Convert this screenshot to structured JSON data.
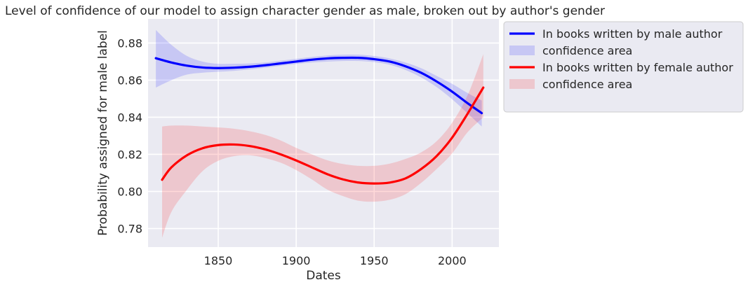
{
  "chart_data": {
    "type": "line",
    "title": "Level of confidence of our model to assign character gender as male, broken out by author's gender",
    "xlabel": "Dates",
    "ylabel": "Probability assigned for male label",
    "xlim": [
      1805,
      2030
    ],
    "ylim": [
      0.77,
      0.893
    ],
    "xticks": [
      1850,
      1900,
      1950,
      2000
    ],
    "yticks": [
      0.78,
      0.8,
      0.82,
      0.84,
      0.86,
      0.88
    ],
    "grid": true,
    "legend_position": "outside-top-right",
    "series": [
      {
        "name": "In books written by male author",
        "color": "#0000ff",
        "x": [
          1810,
          1820,
          1830,
          1840,
          1850,
          1860,
          1870,
          1880,
          1890,
          1900,
          1910,
          1920,
          1930,
          1940,
          1950,
          1960,
          1970,
          1980,
          1990,
          2000,
          2010,
          2019
        ],
        "y": [
          0.8718,
          0.8695,
          0.8678,
          0.8668,
          0.8665,
          0.8667,
          0.8672,
          0.868,
          0.869,
          0.87,
          0.871,
          0.8717,
          0.872,
          0.872,
          0.8713,
          0.87,
          0.8675,
          0.864,
          0.8593,
          0.8538,
          0.8475,
          0.8422
        ],
        "lower": [
          0.856,
          0.86,
          0.863,
          0.864,
          0.8645,
          0.865,
          0.8658,
          0.8667,
          0.8677,
          0.8687,
          0.8695,
          0.87,
          0.8703,
          0.8703,
          0.8697,
          0.8683,
          0.8655,
          0.8615,
          0.8563,
          0.8497,
          0.842,
          0.835
        ],
        "upper": [
          0.887,
          0.879,
          0.873,
          0.87,
          0.8688,
          0.8688,
          0.869,
          0.8695,
          0.8705,
          0.8715,
          0.8725,
          0.8733,
          0.8737,
          0.8737,
          0.873,
          0.8717,
          0.8695,
          0.8665,
          0.8623,
          0.858,
          0.853,
          0.849
        ]
      },
      {
        "name": "In books written by female author",
        "color": "#ff0000",
        "x": [
          1814,
          1820,
          1830,
          1840,
          1850,
          1860,
          1870,
          1880,
          1890,
          1900,
          1910,
          1920,
          1930,
          1940,
          1950,
          1960,
          1970,
          1980,
          1990,
          2000,
          2010,
          2020
        ],
        "y": [
          0.8063,
          0.813,
          0.8195,
          0.8233,
          0.825,
          0.8253,
          0.8245,
          0.8227,
          0.82,
          0.8167,
          0.813,
          0.8093,
          0.8065,
          0.8048,
          0.8043,
          0.8048,
          0.807,
          0.812,
          0.819,
          0.829,
          0.842,
          0.856
        ],
        "lower": [
          0.775,
          0.789,
          0.801,
          0.811,
          0.8165,
          0.819,
          0.8195,
          0.818,
          0.8155,
          0.8115,
          0.8065,
          0.801,
          0.7975,
          0.795,
          0.7945,
          0.7955,
          0.7985,
          0.8045,
          0.812,
          0.8205,
          0.832,
          0.84
        ],
        "upper": [
          0.835,
          0.8355,
          0.8355,
          0.835,
          0.8345,
          0.8338,
          0.8325,
          0.8305,
          0.8275,
          0.8235,
          0.82,
          0.8168,
          0.8148,
          0.8138,
          0.8138,
          0.815,
          0.8175,
          0.821,
          0.827,
          0.837,
          0.852,
          0.874
        ]
      }
    ],
    "legend": [
      {
        "label": "In books written by male author",
        "kind": "line",
        "color": "#0000ff"
      },
      {
        "label": "confidence area",
        "kind": "patch",
        "color": "#0000ff"
      },
      {
        "label": "In books written by female author",
        "kind": "line",
        "color": "#ff0000"
      },
      {
        "label": "confidence area",
        "kind": "patch",
        "color": "#ff0000"
      }
    ]
  }
}
